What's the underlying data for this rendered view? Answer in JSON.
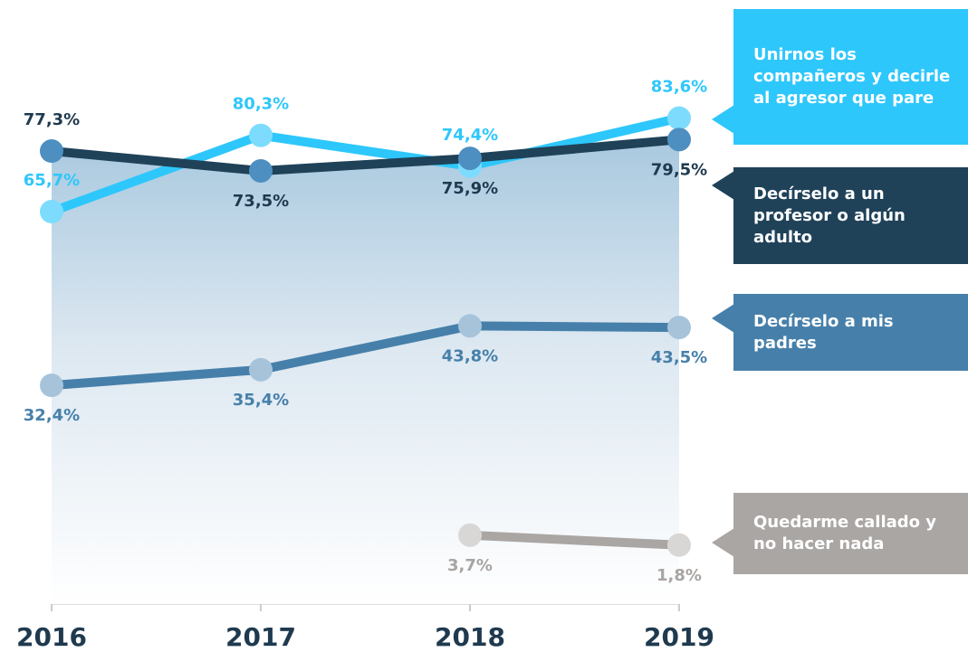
{
  "chart_data": {
    "type": "line",
    "categories": [
      "2016",
      "2017",
      "2018",
      "2019"
    ],
    "ylim": [
      -9.5,
      100
    ],
    "series": [
      {
        "name": "Unirnos los compañeros y decirle al agresor que pare",
        "color": "#2ec7fb",
        "marker_color": "#7ddcfd",
        "values": [
          65.7,
          80.3,
          74.4,
          83.6
        ],
        "value_labels": [
          "65,7%",
          "80,3%",
          "74,4%",
          "83,6%"
        ]
      },
      {
        "name": "Decírselo a un profesor o algún adulto",
        "color": "#1f4259",
        "marker_color": "#4d8fc0",
        "fill": true,
        "values": [
          77.3,
          73.5,
          75.9,
          79.5
        ],
        "value_labels": [
          "77,3%",
          "73,5%",
          "75,9%",
          "79,5%"
        ]
      },
      {
        "name": "Decírselo a mis padres",
        "color": "#4680aa",
        "marker_color": "#a6c3da",
        "values": [
          32.4,
          35.4,
          43.8,
          43.5
        ],
        "value_labels": [
          "32,4%",
          "35,4%",
          "43,8%",
          "43,5%"
        ]
      },
      {
        "name": "Quedarme callado y no hacer nada",
        "color": "#aaa6a4",
        "marker_color": "#d9d7d6",
        "values": [
          null,
          null,
          3.7,
          1.8
        ],
        "value_labels": [
          null,
          null,
          "3,7%",
          "1,8%"
        ]
      }
    ]
  }
}
